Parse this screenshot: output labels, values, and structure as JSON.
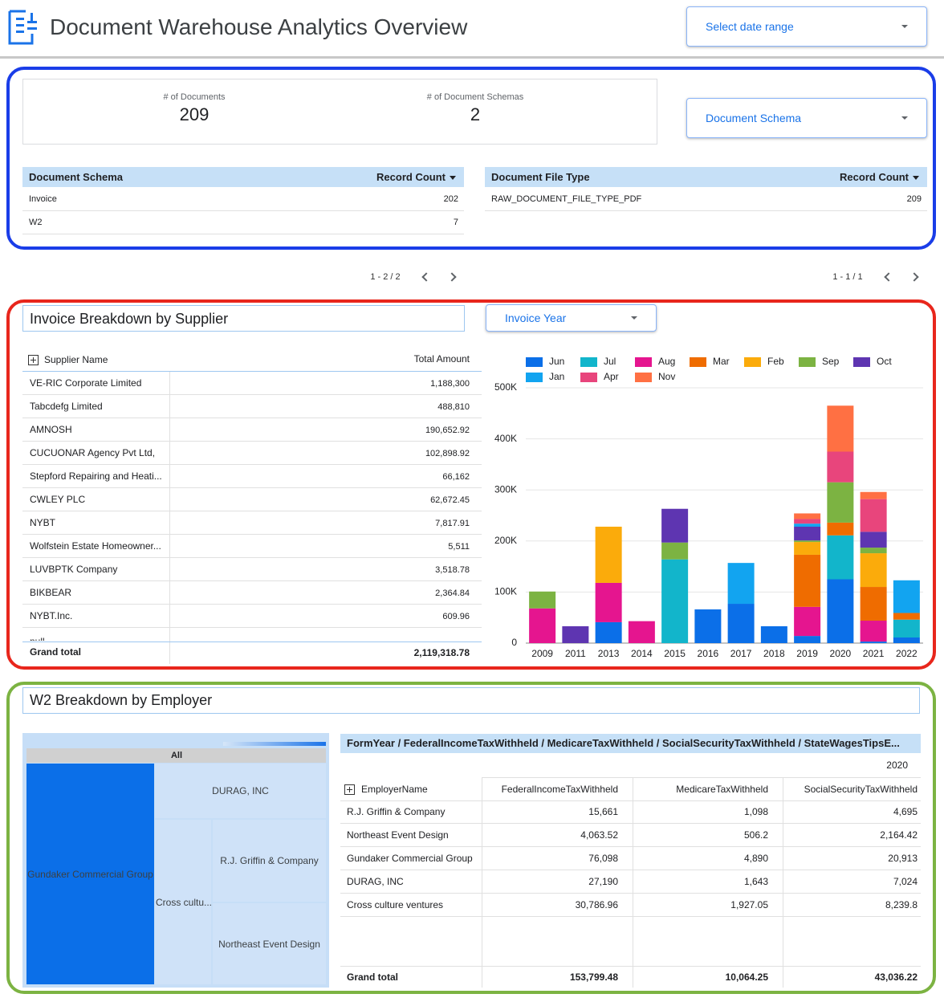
{
  "header": {
    "title": "Document Warehouse Analytics Overview",
    "date_range": "Select date range"
  },
  "summary": {
    "metrics": [
      {
        "label": "# of Documents",
        "value": "209"
      },
      {
        "label": "# of Document Schemas",
        "value": "2"
      }
    ],
    "schema_filter": "Document Schema"
  },
  "schema_table": {
    "columns": [
      "Document Schema",
      "Record Count"
    ],
    "rows": [
      [
        "Invoice",
        "202"
      ],
      [
        "W2",
        "7"
      ]
    ],
    "pagination": "1 - 2 / 2"
  },
  "file_type_table": {
    "columns": [
      "Document File Type",
      "Record Count"
    ],
    "rows": [
      [
        "RAW_DOCUMENT_FILE_TYPE_PDF",
        "209"
      ]
    ],
    "pagination": "1 - 1 / 1"
  },
  "invoice_section": {
    "title": "Invoice Breakdown by Supplier",
    "year_filter": "Invoice Year",
    "table": {
      "columns": [
        "Supplier Name",
        "Total Amount"
      ],
      "rows": [
        [
          "VE-RIC Corporate Limited",
          "1,188,300"
        ],
        [
          "Tabcdefg Limited",
          "488,810"
        ],
        [
          "AMNOSH",
          "190,652.92"
        ],
        [
          "CUCUONAR Agency Pvt Ltd,",
          "102,898.92"
        ],
        [
          "Stepford Repairing and Heati...",
          "66,162"
        ],
        [
          "CWLEY PLC",
          "62,672.45"
        ],
        [
          "NYBT",
          "7,817.91"
        ],
        [
          "Wolfstein Estate Homeowner...",
          "5,511"
        ],
        [
          "LUVBPTK Company",
          "3,518.78"
        ],
        [
          "BIKBEAR",
          "2,364.84"
        ],
        [
          "NYBT.Inc.",
          "609.96"
        ]
      ],
      "partial_row": "null",
      "total": [
        "Grand total",
        "2,119,318.78"
      ]
    }
  },
  "chart_data": {
    "type": "bar",
    "stacked": true,
    "grid": true,
    "legend": "top",
    "categories": [
      "2009",
      "2011",
      "2013",
      "2014",
      "2015",
      "2016",
      "2017",
      "2018",
      "2019",
      "2020",
      "2021",
      "2022"
    ],
    "ylim": [
      0,
      500000
    ],
    "yticks": [
      0,
      {
        "value": 100000,
        "label": "100K"
      },
      {
        "value": 200000,
        "label": "200K"
      },
      {
        "value": 300000,
        "label": "300K"
      },
      {
        "value": 400000,
        "label": "400K"
      },
      {
        "value": 500000,
        "label": "500K"
      }
    ],
    "series": [
      {
        "name": "Jun",
        "color": "#0b6fe8",
        "values": [
          null,
          null,
          41000,
          null,
          null,
          66000,
          77000,
          33000,
          14000,
          125000,
          3000,
          11000
        ]
      },
      {
        "name": "Jul",
        "color": "#12b5cb",
        "values": [
          null,
          null,
          null,
          null,
          164000,
          null,
          null,
          null,
          null,
          86000,
          null,
          35000
        ]
      },
      {
        "name": "Aug",
        "color": "#e5158f",
        "values": [
          68000,
          null,
          77000,
          43000,
          null,
          null,
          null,
          null,
          57000,
          null,
          41000,
          null
        ]
      },
      {
        "name": "Mar",
        "color": "#ef6c00",
        "values": [
          null,
          null,
          null,
          null,
          null,
          null,
          null,
          null,
          102000,
          25000,
          66000,
          13000
        ]
      },
      {
        "name": "Feb",
        "color": "#fbab0b",
        "values": [
          null,
          null,
          110000,
          null,
          null,
          null,
          null,
          null,
          25000,
          null,
          66000,
          null
        ]
      },
      {
        "name": "Sep",
        "color": "#7cb342",
        "values": [
          33000,
          null,
          null,
          null,
          33000,
          null,
          null,
          null,
          3000,
          79000,
          11000,
          null
        ]
      },
      {
        "name": "Oct",
        "color": "#5e35b1",
        "values": [
          null,
          33000,
          null,
          null,
          66000,
          null,
          null,
          null,
          27000,
          null,
          31000,
          null
        ]
      },
      {
        "name": "Jan",
        "color": "#12a4f0",
        "values": [
          null,
          null,
          null,
          null,
          null,
          null,
          80000,
          null,
          6000,
          null,
          null,
          64000
        ]
      },
      {
        "name": "Apr",
        "color": "#e8457c",
        "values": [
          null,
          null,
          null,
          null,
          null,
          null,
          null,
          null,
          9000,
          60000,
          64000,
          null
        ]
      },
      {
        "name": "Nov",
        "color": "#ff7043",
        "values": [
          null,
          null,
          null,
          null,
          null,
          null,
          null,
          null,
          11000,
          90000,
          14000,
          null
        ]
      }
    ]
  },
  "w2_section": {
    "title": "W2 Breakdown by Employer",
    "treemap": {
      "root": "All",
      "cells": [
        "Gundaker Commercial Group",
        "DURAG, INC",
        "Cross cultu...",
        "R.J. Griffin & Company",
        "Northeast Event Design"
      ]
    },
    "pivot": {
      "title": "FormYear / FederalIncomeTaxWithheld / MedicareTaxWithheld / SocialSecurityTaxWithheld / StateWagesTipsE...",
      "year": "2020",
      "columns": [
        "EmployerName",
        "FederalIncomeTaxWithheld",
        "MedicareTaxWithheld",
        "SocialSecurityTaxWithheld"
      ],
      "rows": [
        [
          "R.J. Griffin & Company",
          "15,661",
          "1,098",
          "4,695"
        ],
        [
          "Northeast Event Design",
          "4,063.52",
          "506.2",
          "2,164.42"
        ],
        [
          "Gundaker Commercial Group",
          "76,098",
          "4,890",
          "20,913"
        ],
        [
          "DURAG, INC",
          "27,190",
          "1,643",
          "7,024"
        ],
        [
          "Cross culture ventures",
          "30,786.96",
          "1,927.05",
          "8,239.8"
        ]
      ],
      "total": [
        "Grand total",
        "153,799.48",
        "10,064.25",
        "43,036.22"
      ]
    }
  }
}
